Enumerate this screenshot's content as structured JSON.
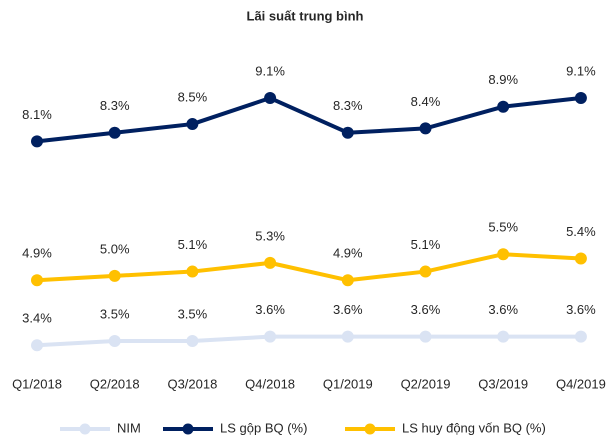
{
  "chart_data": {
    "type": "line",
    "title": "Lãi suất trung bình",
    "categories": [
      "Q1/2018",
      "Q2/2018",
      "Q3/2018",
      "Q4/2018",
      "Q1/2019",
      "Q2/2019",
      "Q3/2019",
      "Q4/2019"
    ],
    "ylim": [
      2.9,
      9.7
    ],
    "legend": "bottom",
    "series": [
      {
        "name": "NIM",
        "color": "#dae3f3",
        "values": [
          3.4,
          3.5,
          3.5,
          3.6,
          3.6,
          3.6,
          3.6,
          3.6
        ],
        "value_labels": [
          "3.4%",
          "3.5%",
          "3.5%",
          "3.6%",
          "3.6%",
          "3.6%",
          "3.6%",
          "3.6%"
        ]
      },
      {
        "name": "LS gộp BQ (%)",
        "color": "#002060",
        "values": [
          8.1,
          8.3,
          8.5,
          9.1,
          8.3,
          8.4,
          8.9,
          9.1
        ],
        "value_labels": [
          "8.1%",
          "8.3%",
          "8.5%",
          "9.1%",
          "8.3%",
          "8.4%",
          "8.9%",
          "9.1%"
        ]
      },
      {
        "name": "LS huy động vốn BQ (%)",
        "color": "#ffc000",
        "values": [
          4.9,
          5.0,
          5.1,
          5.3,
          4.9,
          5.1,
          5.5,
          5.4
        ],
        "value_labels": [
          "4.9%",
          "5.0%",
          "5.1%",
          "5.3%",
          "4.9%",
          "5.1%",
          "5.5%",
          "5.4%"
        ]
      }
    ]
  }
}
